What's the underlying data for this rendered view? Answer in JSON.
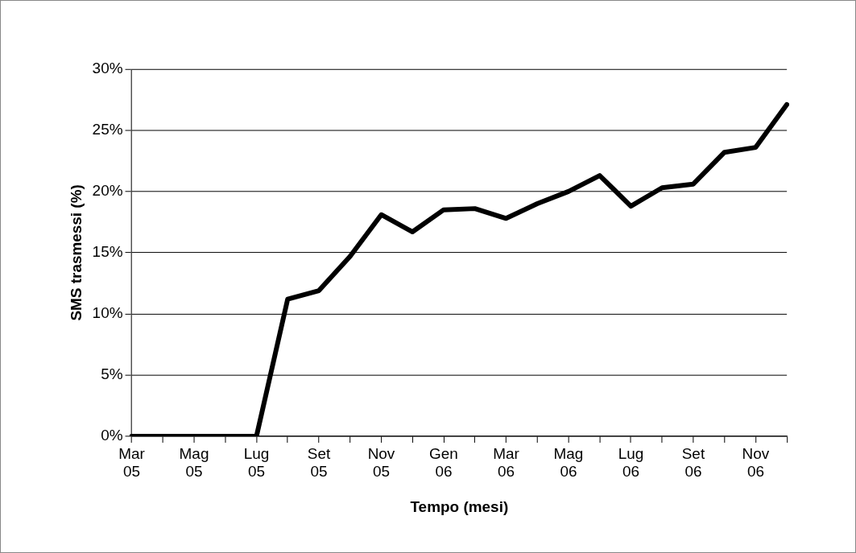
{
  "chart_data": {
    "type": "line",
    "xlabel": "Tempo (mesi)",
    "ylabel": "SMS trasmessi (%)",
    "categories": [
      "Mar 05",
      null,
      "Mag 05",
      null,
      "Lug 05",
      null,
      "Set 05",
      null,
      "Nov 05",
      null,
      "Gen 06",
      null,
      "Mar 06",
      null,
      "Mag 06",
      null,
      "Lug 06",
      null,
      "Set 06",
      null,
      "Nov 06",
      null
    ],
    "series": [
      {
        "color": "#000000",
        "values": [
          0,
          0,
          0,
          0,
          0,
          11.2,
          11.9,
          14.7,
          18.1,
          16.7,
          18.5,
          18.6,
          17.8,
          19.0,
          20.0,
          21.3,
          18.8,
          20.3,
          20.6,
          23.2,
          23.6,
          27.1
        ]
      }
    ],
    "ylim": [
      0,
      30
    ],
    "yticks": [
      {
        "value": 0,
        "label": "0%"
      },
      {
        "value": 5,
        "label": "5%"
      },
      {
        "value": 10,
        "label": "10%"
      },
      {
        "value": 15,
        "label": "15%"
      },
      {
        "value": 20,
        "label": "20%"
      },
      {
        "value": 25,
        "label": "25%"
      },
      {
        "value": 30,
        "label": "30%"
      }
    ],
    "grid": "y",
    "legend": false,
    "marker": "none",
    "line_style": "solid"
  }
}
